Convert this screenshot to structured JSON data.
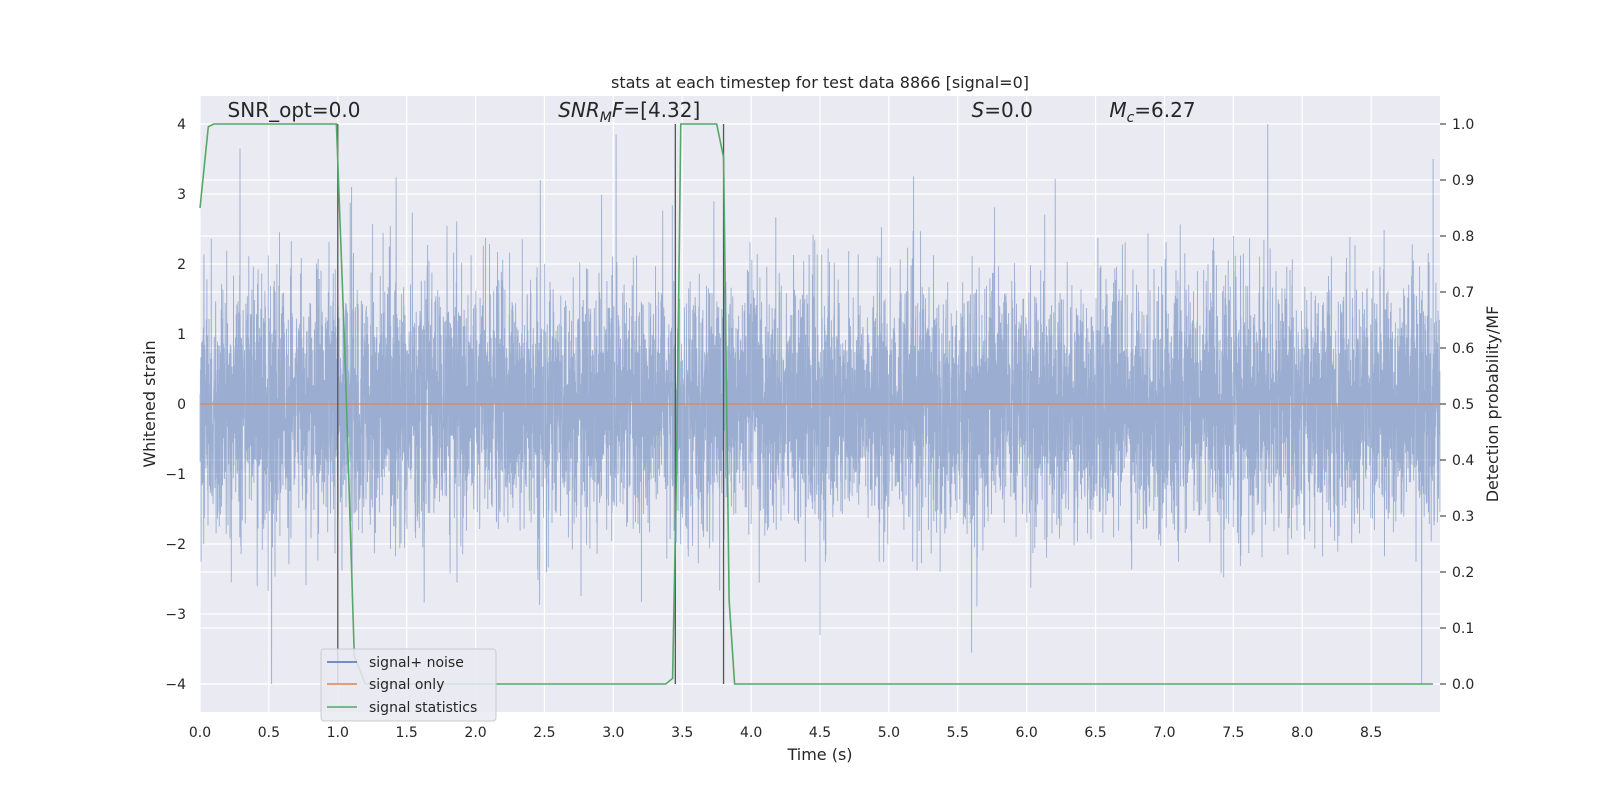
{
  "chart_data": {
    "type": "line",
    "title": "stats at each timestep for test data 8866 [signal=0]",
    "xlabel": "Time (s)",
    "ylabel": "Whitened strain",
    "ylabel_right": "Detection probability/MF",
    "xlim": [
      0.0,
      9.0
    ],
    "ylim": [
      -4.4,
      4.4
    ],
    "ylim_right": [
      -0.05,
      1.05
    ],
    "x_ticks": [
      0.0,
      0.5,
      1.0,
      1.5,
      2.0,
      2.5,
      3.0,
      3.5,
      4.0,
      4.5,
      5.0,
      5.5,
      6.0,
      6.5,
      7.0,
      7.5,
      8.0,
      8.5
    ],
    "x_tick_labels": [
      "0.0",
      "0.5",
      "1.0",
      "1.5",
      "2.0",
      "2.5",
      "3.0",
      "3.5",
      "4.0",
      "4.5",
      "5.0",
      "5.5",
      "6.0",
      "6.5",
      "7.0",
      "7.5",
      "8.0",
      "8.5"
    ],
    "y_ticks": [
      -4,
      -3,
      -2,
      -1,
      0,
      1,
      2,
      3,
      4
    ],
    "y_tick_labels": [
      "−4",
      "−3",
      "−2",
      "−1",
      "0",
      "1",
      "2",
      "3",
      "4"
    ],
    "y_right_ticks": [
      0.0,
      0.1,
      0.2,
      0.3,
      0.4,
      0.5,
      0.6,
      0.7,
      0.8,
      0.9,
      1.0
    ],
    "y_right_tick_labels": [
      "0.0",
      "0.1",
      "0.2",
      "0.3",
      "0.4",
      "0.5",
      "0.6",
      "0.7",
      "0.8",
      "0.9",
      "1.0"
    ],
    "grid": true,
    "legend_position": "lower-left",
    "annotations": [
      {
        "text": "SNR_opt=0.0",
        "x": 0.2,
        "y": 4.1
      },
      {
        "text": "SNR_MF=[4.32]",
        "x": 2.6,
        "y": 4.1
      },
      {
        "text": "S=0.0",
        "x": 5.6,
        "y": 4.1
      },
      {
        "text": "M_c=6.27",
        "x": 6.6,
        "y": 4.1
      }
    ],
    "vertical_lines_x": [
      1.0,
      3.45,
      3.8
    ],
    "series": [
      {
        "name": "signal+ noise",
        "color": "#4c72b0",
        "kind": "noise",
        "sample_rate_hz": 1000,
        "std": 0.85,
        "envelope": [
          -4.0,
          4.0
        ],
        "peaks": [
          {
            "x": 0.29,
            "y": 3.65
          },
          {
            "x": 0.52,
            "y": -4.0
          },
          {
            "x": 1.1,
            "y": 3.1
          },
          {
            "x": 2.47,
            "y": 3.2
          },
          {
            "x": 3.02,
            "y": 3.85
          },
          {
            "x": 5.6,
            "y": -3.55
          },
          {
            "x": 7.75,
            "y": 4.0
          },
          {
            "x": 8.95,
            "y": 3.5
          },
          {
            "x": 4.5,
            "y": -3.3
          }
        ]
      },
      {
        "name": "signal only",
        "color": "#dd8452",
        "kind": "line",
        "x": [
          0.0,
          9.0
        ],
        "y": [
          0.0,
          0.0
        ]
      },
      {
        "name": "signal statistics",
        "color": "#55a868",
        "kind": "line",
        "axis": "right",
        "x": [
          0.0,
          0.06,
          0.1,
          0.95,
          0.99,
          1.05,
          1.12,
          1.2,
          3.38,
          3.43,
          3.46,
          3.49,
          3.75,
          3.8,
          3.84,
          3.88,
          8.95
        ],
        "y": [
          0.85,
          0.995,
          1.0,
          1.0,
          1.0,
          0.6,
          0.05,
          0.0,
          0.0,
          0.01,
          0.4,
          1.0,
          1.0,
          0.94,
          0.15,
          0.0,
          0.0
        ]
      }
    ]
  }
}
